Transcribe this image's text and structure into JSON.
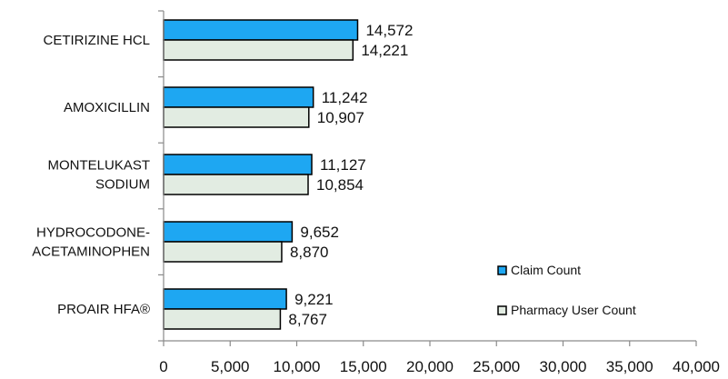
{
  "chart_data": {
    "type": "bar",
    "orientation": "horizontal",
    "categories": [
      [
        "CETIRIZINE HCL"
      ],
      [
        "AMOXICILLIN"
      ],
      [
        "MONTELUKAST",
        "SODIUM"
      ],
      [
        "HYDROCODONE-",
        "ACETAMINOPHEN"
      ],
      [
        "PROAIR HFA®"
      ]
    ],
    "series": [
      {
        "name": "Claim Count",
        "color": "#1ea7f2",
        "values": [
          14572,
          11242,
          11127,
          9652,
          9221
        ]
      },
      {
        "name": "Pharmacy User Count",
        "color": "#e2ece2",
        "values": [
          14221,
          10907,
          10854,
          8870,
          8767
        ]
      }
    ],
    "value_labels": [
      [
        "14,572",
        "11,242",
        "11,127",
        "9,652",
        "9,221"
      ],
      [
        "14,221",
        "10,907",
        "10,854",
        "8,870",
        "8,767"
      ]
    ],
    "xlim": [
      0,
      40000
    ],
    "xticks": [
      0,
      5000,
      10000,
      15000,
      20000,
      25000,
      30000,
      35000,
      40000
    ],
    "xtick_labels": [
      "0",
      "5,000",
      "10,000",
      "15,000",
      "20,000",
      "25,000",
      "30,000",
      "35,000",
      "40,000"
    ],
    "grid": false,
    "legend_position": "bottom-right"
  }
}
